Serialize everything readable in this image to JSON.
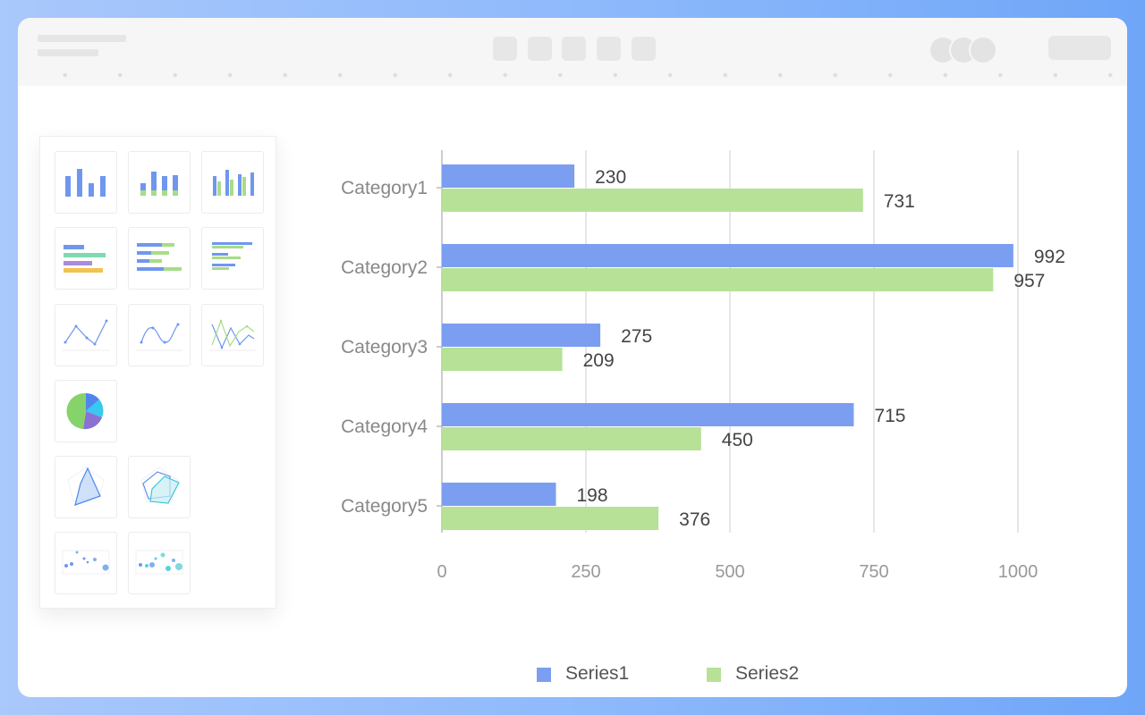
{
  "chart_data": {
    "type": "bar",
    "orientation": "horizontal",
    "categories": [
      "Category1",
      "Category2",
      "Category3",
      "Category4",
      "Category5"
    ],
    "series": [
      {
        "name": "Series1",
        "values": [
          230,
          992,
          275,
          715,
          198
        ],
        "color": "#7b9ef0"
      },
      {
        "name": "Series2",
        "values": [
          731,
          957,
          209,
          450,
          376
        ],
        "color": "#b6e197"
      }
    ],
    "x_ticks": [
      "0",
      "250",
      "500",
      "750",
      "1000"
    ],
    "xlim": [
      0,
      1000
    ],
    "grid": true,
    "legend": "bottom-center",
    "data_labels": true
  },
  "thumbnails": [
    {
      "icon": "bar-chart-icon"
    },
    {
      "icon": "stacked-bar-chart-icon"
    },
    {
      "icon": "grouped-bar-chart-icon"
    },
    {
      "icon": "horizontal-bar-chart-icon"
    },
    {
      "icon": "stacked-horizontal-bar-chart-icon"
    },
    {
      "icon": "grouped-horizontal-bar-chart-icon"
    },
    {
      "icon": "line-chart-icon"
    },
    {
      "icon": "smooth-line-chart-icon"
    },
    {
      "icon": "multi-line-chart-icon"
    },
    {
      "icon": "pie-chart-icon"
    },
    {
      "icon": "radar-chart-icon"
    },
    {
      "icon": "multi-radar-chart-icon"
    },
    {
      "icon": "scatter-chart-icon"
    },
    {
      "icon": "bubble-chart-icon"
    }
  ],
  "colors": {
    "background_gradient": [
      "#a9c8fb",
      "#6fa6f8"
    ],
    "window": "#ffffff",
    "toolbar": "#f6f6f6",
    "grid": "#dddddd",
    "axis_text": "#999999",
    "label_text": "#444444"
  }
}
